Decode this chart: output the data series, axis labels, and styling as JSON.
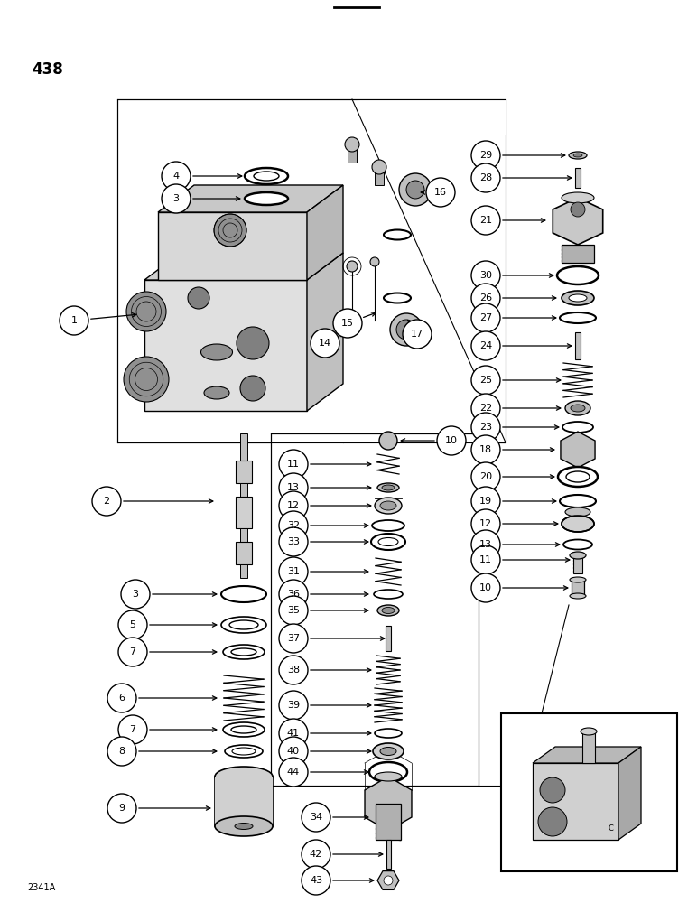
{
  "page_number": "438",
  "footer_text": "2341A",
  "bg": "#ffffff",
  "lc": "#000000",
  "fw": 7.72,
  "fh": 10.0,
  "dpi": 100
}
